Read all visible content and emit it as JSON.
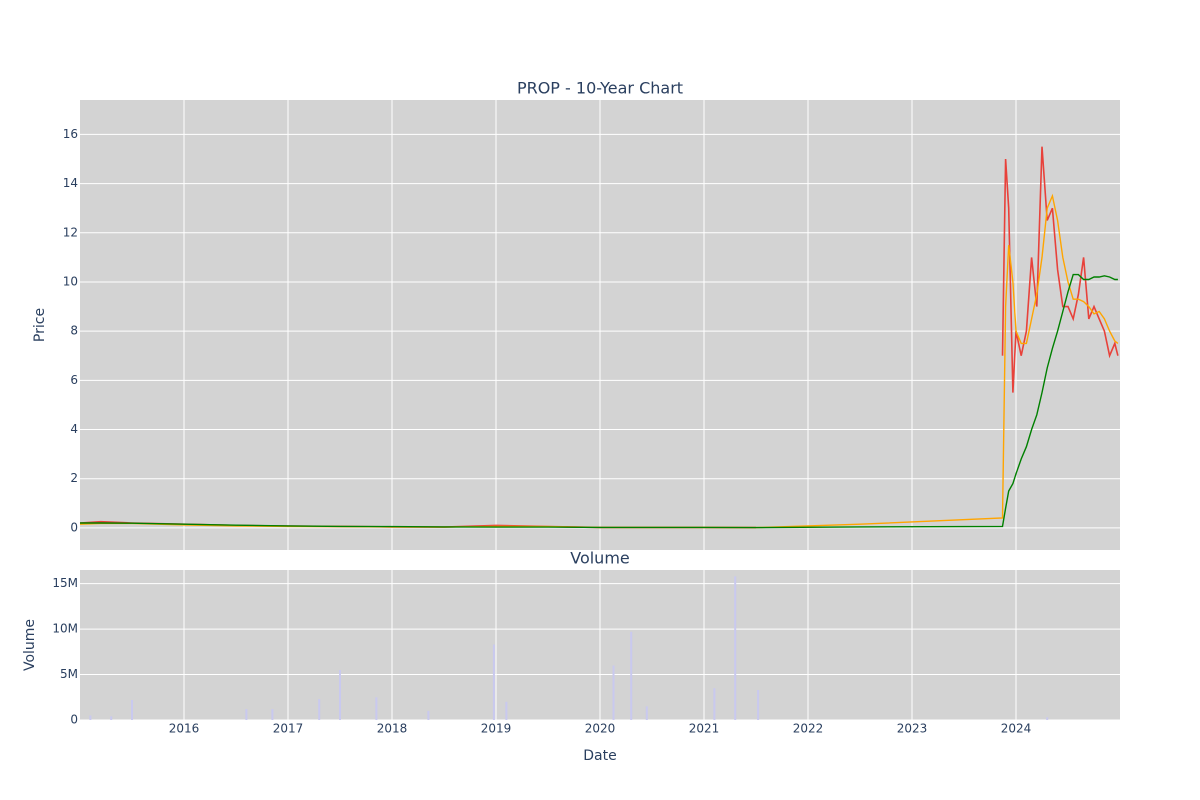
{
  "chart_data": [
    {
      "type": "line",
      "title": "PROP - 10-Year Chart",
      "y_label": "Price",
      "x": [
        2015.0,
        2015.2,
        2015.5,
        2016.0,
        2016.5,
        2017.0,
        2017.5,
        2018.0,
        2018.5,
        2019.0,
        2019.5,
        2020.0,
        2020.5,
        2021.0,
        2021.5,
        2022.5,
        2023.87,
        2023.9,
        2023.93,
        2023.97,
        2024.0,
        2024.05,
        2024.1,
        2024.15,
        2024.2,
        2024.25,
        2024.3,
        2024.35,
        2024.4,
        2024.45,
        2024.5,
        2024.55,
        2024.6,
        2024.65,
        2024.7,
        2024.75,
        2024.8,
        2024.85,
        2024.9,
        2024.95,
        2024.98
      ],
      "series": [
        {
          "color": "#e8413a",
          "values": [
            0.2,
            0.25,
            0.2,
            0.15,
            0.1,
            0.07,
            0.06,
            0.04,
            0.03,
            0.1,
            0.05,
            0.02,
            0.02,
            0.02,
            0.01,
            null,
            7,
            15,
            13,
            5.5,
            8,
            7,
            8,
            11,
            9,
            15.5,
            12.5,
            13,
            10.5,
            9,
            9,
            8.5,
            9.5,
            11,
            8.5,
            9,
            8.5,
            8,
            7,
            7.5,
            7
          ]
        },
        {
          "color": "#ffa500",
          "values": [
            0.15,
            0.18,
            0.18,
            0.12,
            0.08,
            0.06,
            0.05,
            0.04,
            0.03,
            0.06,
            0.05,
            0.02,
            0.02,
            0.02,
            0.01,
            0.15,
            0.4,
            9,
            11.5,
            10,
            8,
            7.5,
            7.5,
            8.5,
            9.5,
            11,
            13,
            13.5,
            12.5,
            11,
            10,
            9.3,
            9.3,
            9.2,
            9,
            8.7,
            8.8,
            8.5,
            8,
            7.6,
            7.5
          ]
        },
        {
          "color": "#008000",
          "values": [
            0.2,
            0.2,
            0.19,
            0.15,
            0.11,
            0.08,
            0.06,
            0.05,
            0.04,
            0.03,
            0.03,
            0.02,
            0.02,
            0.02,
            0.01,
            0.04,
            0.06,
            0.8,
            1.5,
            1.8,
            2.2,
            2.8,
            3.3,
            4,
            4.6,
            5.5,
            6.5,
            7.3,
            8,
            8.8,
            9.6,
            10.3,
            10.3,
            10.1,
            10.1,
            10.2,
            10.2,
            10.25,
            10.2,
            10.1,
            10.1
          ]
        }
      ],
      "xlim": [
        2015.0,
        2025.0
      ],
      "xticks": [
        2016,
        2017,
        2018,
        2019,
        2020,
        2021,
        2022,
        2023,
        2024
      ],
      "ylim": [
        -0.9,
        17.4
      ],
      "yticks": [
        0,
        2,
        4,
        6,
        8,
        10,
        12,
        14,
        16
      ],
      "grid": true
    },
    {
      "type": "bar",
      "title": "Volume",
      "y_label": "Volume",
      "x_label": "Date",
      "color": "#c9c9ef",
      "x": [
        2015.1,
        2015.3,
        2015.5,
        2016.6,
        2016.85,
        2017.3,
        2017.5,
        2017.85,
        2018.35,
        2018.98,
        2019.1,
        2020.13,
        2020.3,
        2020.45,
        2021.1,
        2021.3,
        2021.52,
        2024.3
      ],
      "values": [
        500000,
        400000,
        2200000,
        1200000,
        1200000,
        2300000,
        5500000,
        2500000,
        1000000,
        8300000,
        2000000,
        6000000,
        9700000,
        1500000,
        3500000,
        15800000,
        3300000,
        300000
      ],
      "xlim": [
        2015.0,
        2025.0
      ],
      "xticks": [
        2016,
        2017,
        2018,
        2019,
        2020,
        2021,
        2022,
        2023,
        2024
      ],
      "ylim": [
        0,
        16500000
      ],
      "yticks": [
        0,
        {
          "value": 5000000,
          "label": "5M"
        },
        {
          "value": 10000000,
          "label": "10M"
        },
        {
          "value": 15000000,
          "label": "15M"
        }
      ],
      "grid": true
    }
  ]
}
